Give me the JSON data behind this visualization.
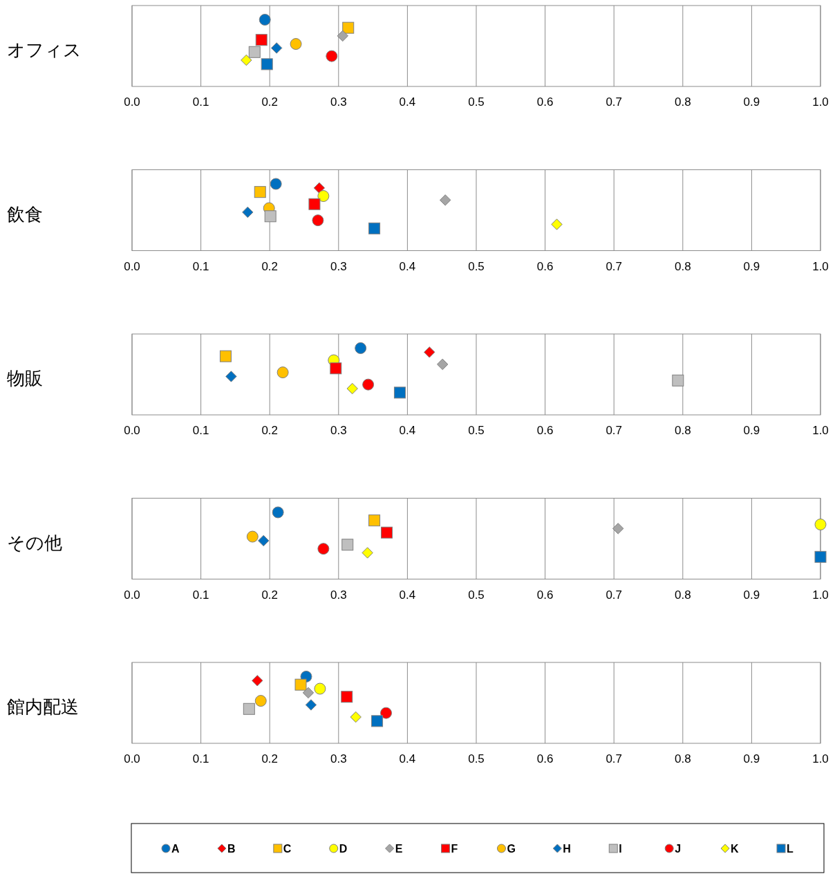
{
  "chart_data": [
    {
      "type": "scatter",
      "title": "オフィス",
      "orientation": "horizontal",
      "categories": [
        null,
        null,
        null,
        null,
        null,
        null,
        null,
        null,
        null,
        null,
        null,
        null,
        null,
        null,
        null,
        null,
        null,
        null,
        null,
        null
      ],
      "xlim": [
        0,
        1
      ],
      "xticks": [
        {
          "value": 0,
          "label": "0.0"
        },
        {
          "value": 0.1,
          "label": "0.1"
        },
        {
          "value": 0.2,
          "label": "0.2"
        },
        {
          "value": 0.3,
          "label": "0.3"
        },
        {
          "value": 0.4,
          "label": "0.4"
        },
        {
          "value": 0.5,
          "label": "0.5"
        },
        {
          "value": 0.6,
          "label": "0.6"
        },
        {
          "value": 0.7,
          "label": "0.7"
        },
        {
          "value": 0.8,
          "label": "0.8"
        },
        {
          "value": 0.9,
          "label": "0.9"
        },
        {
          "value": 1,
          "label": "1.0"
        }
      ],
      "grid": "x",
      "series": [
        {
          "color": "#0070c0",
          "marker": "circle",
          "values": [
            null,
            null,
            null,
            0.193,
            null,
            null,
            null,
            null,
            null,
            null,
            null,
            null,
            null,
            null,
            null,
            null,
            null,
            null,
            null,
            null
          ]
        },
        {
          "values": [
            null,
            null,
            null,
            null,
            null,
            null,
            null,
            null,
            null,
            null,
            null,
            null,
            null,
            null,
            null,
            null,
            null,
            null,
            null,
            null
          ]
        },
        {
          "color": "#ffc000",
          "marker": "square",
          "values": [
            null,
            null,
            null,
            null,
            null,
            0.314,
            null,
            null,
            null,
            null,
            null,
            null,
            null,
            null,
            null,
            null,
            null,
            null,
            null,
            null
          ]
        },
        {
          "values": [
            null,
            null,
            null,
            null,
            null,
            null,
            null,
            null,
            null,
            null,
            null,
            null,
            null,
            null,
            null,
            null,
            null,
            null,
            null,
            null
          ]
        },
        {
          "color": "#a5a5a5",
          "marker": "diamond",
          "values": [
            null,
            null,
            null,
            null,
            null,
            null,
            null,
            0.306,
            null,
            null,
            null,
            null,
            null,
            null,
            null,
            null,
            null,
            null,
            null,
            null
          ]
        },
        {
          "color": "#ff0000",
          "marker": "square",
          "values": [
            null,
            null,
            null,
            null,
            null,
            null,
            null,
            null,
            0.188,
            null,
            null,
            null,
            null,
            null,
            null,
            null,
            null,
            null,
            null,
            null
          ]
        },
        {
          "color": "#ffc000",
          "marker": "circle",
          "values": [
            null,
            null,
            null,
            null,
            null,
            null,
            null,
            null,
            null,
            0.238,
            null,
            null,
            null,
            null,
            null,
            null,
            null,
            null,
            null,
            null
          ]
        },
        {
          "color": "#0070c0",
          "marker": "diamond",
          "values": [
            null,
            null,
            null,
            null,
            null,
            null,
            null,
            null,
            null,
            null,
            0.21,
            null,
            null,
            null,
            null,
            null,
            null,
            null,
            null,
            null
          ]
        },
        {
          "color": "#bfbfbf",
          "marker": "square",
          "values": [
            null,
            null,
            null,
            null,
            null,
            null,
            null,
            null,
            null,
            null,
            null,
            0.178,
            null,
            null,
            null,
            null,
            null,
            null,
            null,
            null
          ]
        },
        {
          "color": "#ff0000",
          "marker": "circle",
          "values": [
            null,
            null,
            null,
            null,
            null,
            null,
            null,
            null,
            null,
            null,
            null,
            null,
            0.29,
            null,
            null,
            null,
            null,
            null,
            null,
            null
          ]
        },
        {
          "color": "#ffff00",
          "marker": "diamond",
          "values": [
            null,
            null,
            null,
            null,
            null,
            null,
            null,
            null,
            null,
            null,
            null,
            null,
            null,
            0.166,
            null,
            null,
            null,
            null,
            null,
            null
          ]
        },
        {
          "color": "#0070c0",
          "marker": "square",
          "values": [
            null,
            null,
            null,
            null,
            null,
            null,
            null,
            null,
            null,
            null,
            null,
            null,
            null,
            null,
            0.196,
            null,
            null,
            null,
            null,
            null
          ]
        }
      ]
    },
    {
      "type": "scatter",
      "title": "飲食",
      "orientation": "horizontal",
      "categories": [
        null,
        null,
        null,
        null,
        null,
        null,
        null,
        null,
        null,
        null,
        null,
        null,
        null,
        null,
        null,
        null,
        null,
        null,
        null,
        null
      ],
      "xlim": [
        0,
        1
      ],
      "xticks": [
        {
          "value": 0,
          "label": "0.0"
        },
        {
          "value": 0.1,
          "label": "0.1"
        },
        {
          "value": 0.2,
          "label": "0.2"
        },
        {
          "value": 0.3,
          "label": "0.3"
        },
        {
          "value": 0.4,
          "label": "0.4"
        },
        {
          "value": 0.5,
          "label": "0.5"
        },
        {
          "value": 0.6,
          "label": "0.6"
        },
        {
          "value": 0.7,
          "label": "0.7"
        },
        {
          "value": 0.8,
          "label": "0.8"
        },
        {
          "value": 0.9,
          "label": "0.9"
        },
        {
          "value": 1,
          "label": "1.0"
        }
      ],
      "grid": "x",
      "series": [
        {
          "color": "#0070c0",
          "marker": "circle",
          "values": [
            null,
            null,
            null,
            0.209,
            null,
            null,
            null,
            null,
            null,
            null,
            null,
            null,
            null,
            null,
            null,
            null,
            null,
            null,
            null,
            null
          ]
        },
        {
          "color": "#ff0000",
          "marker": "diamond",
          "values": [
            null,
            null,
            null,
            null,
            0.272,
            null,
            null,
            null,
            null,
            null,
            null,
            null,
            null,
            null,
            null,
            null,
            null,
            null,
            null,
            null
          ]
        },
        {
          "color": "#ffc000",
          "marker": "square",
          "values": [
            null,
            null,
            null,
            null,
            null,
            0.186,
            null,
            null,
            null,
            null,
            null,
            null,
            null,
            null,
            null,
            null,
            null,
            null,
            null,
            null
          ]
        },
        {
          "color": "#ffff00",
          "marker": "circle",
          "values": [
            null,
            null,
            null,
            null,
            null,
            null,
            0.278,
            null,
            null,
            null,
            null,
            null,
            null,
            null,
            null,
            null,
            null,
            null,
            null,
            null
          ]
        },
        {
          "color": "#a5a5a5",
          "marker": "diamond",
          "values": [
            null,
            null,
            null,
            null,
            null,
            null,
            null,
            0.455,
            null,
            null,
            null,
            null,
            null,
            null,
            null,
            null,
            null,
            null,
            null,
            null
          ]
        },
        {
          "color": "#ff0000",
          "marker": "square",
          "values": [
            null,
            null,
            null,
            null,
            null,
            null,
            null,
            null,
            0.265,
            null,
            null,
            null,
            null,
            null,
            null,
            null,
            null,
            null,
            null,
            null
          ]
        },
        {
          "color": "#ffc000",
          "marker": "circle",
          "values": [
            null,
            null,
            null,
            null,
            null,
            null,
            null,
            null,
            null,
            0.199,
            null,
            null,
            null,
            null,
            null,
            null,
            null,
            null,
            null,
            null
          ]
        },
        {
          "color": "#0070c0",
          "marker": "diamond",
          "values": [
            null,
            null,
            null,
            null,
            null,
            null,
            null,
            null,
            null,
            null,
            0.168,
            null,
            null,
            null,
            null,
            null,
            null,
            null,
            null,
            null
          ]
        },
        {
          "color": "#bfbfbf",
          "marker": "square",
          "values": [
            null,
            null,
            null,
            null,
            null,
            null,
            null,
            null,
            null,
            null,
            null,
            0.201,
            null,
            null,
            null,
            null,
            null,
            null,
            null,
            null
          ]
        },
        {
          "color": "#ff0000",
          "marker": "circle",
          "values": [
            null,
            null,
            null,
            null,
            null,
            null,
            null,
            null,
            null,
            null,
            null,
            null,
            0.27,
            null,
            null,
            null,
            null,
            null,
            null,
            null
          ]
        },
        {
          "color": "#ffff00",
          "marker": "diamond",
          "values": [
            null,
            null,
            null,
            null,
            null,
            null,
            null,
            null,
            null,
            null,
            null,
            null,
            null,
            0.617,
            null,
            null,
            null,
            null,
            null,
            null
          ]
        },
        {
          "color": "#0070c0",
          "marker": "square",
          "values": [
            null,
            null,
            null,
            null,
            null,
            null,
            null,
            null,
            null,
            null,
            null,
            null,
            null,
            null,
            0.352,
            null,
            null,
            null,
            null,
            null
          ]
        }
      ]
    },
    {
      "type": "scatter",
      "title": "物販",
      "orientation": "horizontal",
      "categories": [
        null,
        null,
        null,
        null,
        null,
        null,
        null,
        null,
        null,
        null,
        null,
        null,
        null,
        null,
        null,
        null,
        null,
        null,
        null,
        null
      ],
      "xlim": [
        0,
        1
      ],
      "xticks": [
        {
          "value": 0,
          "label": "0.0"
        },
        {
          "value": 0.1,
          "label": "0.1"
        },
        {
          "value": 0.2,
          "label": "0.2"
        },
        {
          "value": 0.3,
          "label": "0.3"
        },
        {
          "value": 0.4,
          "label": "0.4"
        },
        {
          "value": 0.5,
          "label": "0.5"
        },
        {
          "value": 0.6,
          "label": "0.6"
        },
        {
          "value": 0.7,
          "label": "0.7"
        },
        {
          "value": 0.8,
          "label": "0.8"
        },
        {
          "value": 0.9,
          "label": "0.9"
        },
        {
          "value": 1,
          "label": "1.0"
        }
      ],
      "grid": "x",
      "series": [
        {
          "color": "#0070c0",
          "marker": "circle",
          "values": [
            null,
            null,
            null,
            0.332,
            null,
            null,
            null,
            null,
            null,
            null,
            null,
            null,
            null,
            null,
            null,
            null,
            null,
            null,
            null,
            null
          ]
        },
        {
          "color": "#ff0000",
          "marker": "diamond",
          "values": [
            null,
            null,
            null,
            null,
            0.432,
            null,
            null,
            null,
            null,
            null,
            null,
            null,
            null,
            null,
            null,
            null,
            null,
            null,
            null,
            null
          ]
        },
        {
          "color": "#ffc000",
          "marker": "square",
          "values": [
            null,
            null,
            null,
            null,
            null,
            0.136,
            null,
            null,
            null,
            null,
            null,
            null,
            null,
            null,
            null,
            null,
            null,
            null,
            null,
            null
          ]
        },
        {
          "color": "#ffff00",
          "marker": "circle",
          "values": [
            null,
            null,
            null,
            null,
            null,
            null,
            0.293,
            null,
            null,
            null,
            null,
            null,
            null,
            null,
            null,
            null,
            null,
            null,
            null,
            null
          ]
        },
        {
          "color": "#a5a5a5",
          "marker": "diamond",
          "values": [
            null,
            null,
            null,
            null,
            null,
            null,
            null,
            0.451,
            null,
            null,
            null,
            null,
            null,
            null,
            null,
            null,
            null,
            null,
            null,
            null
          ]
        },
        {
          "color": "#ff0000",
          "marker": "square",
          "values": [
            null,
            null,
            null,
            null,
            null,
            null,
            null,
            null,
            0.296,
            null,
            null,
            null,
            null,
            null,
            null,
            null,
            null,
            null,
            null,
            null
          ]
        },
        {
          "color": "#ffc000",
          "marker": "circle",
          "values": [
            null,
            null,
            null,
            null,
            null,
            null,
            null,
            null,
            null,
            0.219,
            null,
            null,
            null,
            null,
            null,
            null,
            null,
            null,
            null,
            null
          ]
        },
        {
          "color": "#0070c0",
          "marker": "diamond",
          "values": [
            null,
            null,
            null,
            null,
            null,
            null,
            null,
            null,
            null,
            null,
            0.144,
            null,
            null,
            null,
            null,
            null,
            null,
            null,
            null,
            null
          ]
        },
        {
          "color": "#bfbfbf",
          "marker": "square",
          "values": [
            null,
            null,
            null,
            null,
            null,
            null,
            null,
            null,
            null,
            null,
            null,
            0.793,
            null,
            null,
            null,
            null,
            null,
            null,
            null,
            null
          ]
        },
        {
          "color": "#ff0000",
          "marker": "circle",
          "values": [
            null,
            null,
            null,
            null,
            null,
            null,
            null,
            null,
            null,
            null,
            null,
            null,
            0.343,
            null,
            null,
            null,
            null,
            null,
            null,
            null
          ]
        },
        {
          "color": "#ffff00",
          "marker": "diamond",
          "values": [
            null,
            null,
            null,
            null,
            null,
            null,
            null,
            null,
            null,
            null,
            null,
            null,
            null,
            0.32,
            null,
            null,
            null,
            null,
            null,
            null
          ]
        },
        {
          "color": "#0070c0",
          "marker": "square",
          "values": [
            null,
            null,
            null,
            null,
            null,
            null,
            null,
            null,
            null,
            null,
            null,
            null,
            null,
            null,
            0.389,
            null,
            null,
            null,
            null,
            null
          ]
        }
      ]
    },
    {
      "type": "scatter",
      "title": "その他",
      "orientation": "horizontal",
      "categories": [
        null,
        null,
        null,
        null,
        null,
        null,
        null,
        null,
        null,
        null,
        null,
        null,
        null,
        null,
        null,
        null,
        null,
        null,
        null,
        null
      ],
      "xlim": [
        0,
        1
      ],
      "xticks": [
        {
          "value": 0,
          "label": "0.0"
        },
        {
          "value": 0.1,
          "label": "0.1"
        },
        {
          "value": 0.2,
          "label": "0.2"
        },
        {
          "value": 0.3,
          "label": "0.3"
        },
        {
          "value": 0.4,
          "label": "0.4"
        },
        {
          "value": 0.5,
          "label": "0.5"
        },
        {
          "value": 0.6,
          "label": "0.6"
        },
        {
          "value": 0.7,
          "label": "0.7"
        },
        {
          "value": 0.8,
          "label": "0.8"
        },
        {
          "value": 0.9,
          "label": "0.9"
        },
        {
          "value": 1,
          "label": "1.0"
        }
      ],
      "grid": "x",
      "series": [
        {
          "color": "#0070c0",
          "marker": "circle",
          "values": [
            null,
            null,
            null,
            0.212,
            null,
            null,
            null,
            null,
            null,
            null,
            null,
            null,
            null,
            null,
            null,
            null,
            null,
            null,
            null,
            null
          ]
        },
        {
          "values": [
            null,
            null,
            null,
            null,
            null,
            null,
            null,
            null,
            null,
            null,
            null,
            null,
            null,
            null,
            null,
            null,
            null,
            null,
            null,
            null
          ]
        },
        {
          "color": "#ffc000",
          "marker": "square",
          "values": [
            null,
            null,
            null,
            null,
            null,
            0.352,
            null,
            null,
            null,
            null,
            null,
            null,
            null,
            null,
            null,
            null,
            null,
            null,
            null,
            null
          ]
        },
        {
          "color": "#ffff00",
          "marker": "circle",
          "values": [
            null,
            null,
            null,
            null,
            null,
            null,
            1,
            null,
            null,
            null,
            null,
            null,
            null,
            null,
            null,
            null,
            null,
            null,
            null,
            null
          ]
        },
        {
          "color": "#a5a5a5",
          "marker": "diamond",
          "values": [
            null,
            null,
            null,
            null,
            null,
            null,
            null,
            0.706,
            null,
            null,
            null,
            null,
            null,
            null,
            null,
            null,
            null,
            null,
            null,
            null
          ]
        },
        {
          "color": "#ff0000",
          "marker": "square",
          "values": [
            null,
            null,
            null,
            null,
            null,
            null,
            null,
            null,
            0.37,
            null,
            null,
            null,
            null,
            null,
            null,
            null,
            null,
            null,
            null,
            null
          ]
        },
        {
          "color": "#ffc000",
          "marker": "circle",
          "values": [
            null,
            null,
            null,
            null,
            null,
            null,
            null,
            null,
            null,
            0.175,
            null,
            null,
            null,
            null,
            null,
            null,
            null,
            null,
            null,
            null
          ]
        },
        {
          "color": "#0070c0",
          "marker": "diamond",
          "values": [
            null,
            null,
            null,
            null,
            null,
            null,
            null,
            null,
            null,
            null,
            0.191,
            null,
            null,
            null,
            null,
            null,
            null,
            null,
            null,
            null
          ]
        },
        {
          "color": "#bfbfbf",
          "marker": "square",
          "values": [
            null,
            null,
            null,
            null,
            null,
            null,
            null,
            null,
            null,
            null,
            null,
            0.313,
            null,
            null,
            null,
            null,
            null,
            null,
            null,
            null
          ]
        },
        {
          "color": "#ff0000",
          "marker": "circle",
          "values": [
            null,
            null,
            null,
            null,
            null,
            null,
            null,
            null,
            null,
            null,
            null,
            null,
            0.278,
            null,
            null,
            null,
            null,
            null,
            null,
            null
          ]
        },
        {
          "color": "#ffff00",
          "marker": "diamond",
          "values": [
            null,
            null,
            null,
            null,
            null,
            null,
            null,
            null,
            null,
            null,
            null,
            null,
            null,
            0.342,
            null,
            null,
            null,
            null,
            null,
            null
          ]
        },
        {
          "color": "#0070c0",
          "marker": "square",
          "values": [
            null,
            null,
            null,
            null,
            null,
            null,
            null,
            null,
            null,
            null,
            null,
            null,
            null,
            null,
            1,
            null,
            null,
            null,
            null,
            null
          ]
        }
      ]
    },
    {
      "type": "scatter",
      "title": "館内配送",
      "orientation": "horizontal",
      "categories": [
        null,
        null,
        null,
        null,
        null,
        null,
        null,
        null,
        null,
        null,
        null,
        null,
        null,
        null,
        null,
        null,
        null,
        null,
        null,
        null
      ],
      "xlim": [
        0,
        1
      ],
      "xticks": [
        {
          "value": 0,
          "label": "0.0"
        },
        {
          "value": 0.1,
          "label": "0.1"
        },
        {
          "value": 0.2,
          "label": "0.2"
        },
        {
          "value": 0.3,
          "label": "0.3"
        },
        {
          "value": 0.4,
          "label": "0.4"
        },
        {
          "value": 0.5,
          "label": "0.5"
        },
        {
          "value": 0.6,
          "label": "0.6"
        },
        {
          "value": 0.7,
          "label": "0.7"
        },
        {
          "value": 0.8,
          "label": "0.8"
        },
        {
          "value": 0.9,
          "label": "0.9"
        },
        {
          "value": 1,
          "label": "1.0"
        }
      ],
      "grid": "x",
      "legend": "bottom",
      "series": [
        {
          "name": "A",
          "color": "#0070c0",
          "marker": "circle",
          "values": [
            null,
            null,
            null,
            0.253,
            null,
            null,
            null,
            null,
            null,
            null,
            null,
            null,
            null,
            null,
            null,
            null,
            null,
            null,
            null,
            null
          ]
        },
        {
          "name": "B",
          "color": "#ff0000",
          "marker": "diamond",
          "values": [
            null,
            null,
            null,
            null,
            0.182,
            null,
            null,
            null,
            null,
            null,
            null,
            null,
            null,
            null,
            null,
            null,
            null,
            null,
            null,
            null
          ]
        },
        {
          "name": "C",
          "color": "#ffc000",
          "marker": "square",
          "values": [
            null,
            null,
            null,
            null,
            null,
            0.245,
            null,
            null,
            null,
            null,
            null,
            null,
            null,
            null,
            null,
            null,
            null,
            null,
            null,
            null
          ]
        },
        {
          "name": "D",
          "color": "#ffff00",
          "marker": "circle",
          "values": [
            null,
            null,
            null,
            null,
            null,
            null,
            0.273,
            null,
            null,
            null,
            null,
            null,
            null,
            null,
            null,
            null,
            null,
            null,
            null,
            null
          ]
        },
        {
          "name": "E",
          "color": "#a5a5a5",
          "marker": "diamond",
          "values": [
            null,
            null,
            null,
            null,
            null,
            null,
            null,
            0.256,
            null,
            null,
            null,
            null,
            null,
            null,
            null,
            null,
            null,
            null,
            null,
            null
          ]
        },
        {
          "name": "F",
          "color": "#ff0000",
          "marker": "square",
          "values": [
            null,
            null,
            null,
            null,
            null,
            null,
            null,
            null,
            0.312,
            null,
            null,
            null,
            null,
            null,
            null,
            null,
            null,
            null,
            null,
            null
          ]
        },
        {
          "name": "G",
          "color": "#ffc000",
          "marker": "circle",
          "values": [
            null,
            null,
            null,
            null,
            null,
            null,
            null,
            null,
            null,
            0.187,
            null,
            null,
            null,
            null,
            null,
            null,
            null,
            null,
            null,
            null
          ]
        },
        {
          "name": "H",
          "color": "#0070c0",
          "marker": "diamond",
          "values": [
            null,
            null,
            null,
            null,
            null,
            null,
            null,
            null,
            null,
            null,
            0.26,
            null,
            null,
            null,
            null,
            null,
            null,
            null,
            null,
            null
          ]
        },
        {
          "name": "I",
          "color": "#bfbfbf",
          "marker": "square",
          "values": [
            null,
            null,
            null,
            null,
            null,
            null,
            null,
            null,
            null,
            null,
            null,
            0.17,
            null,
            null,
            null,
            null,
            null,
            null,
            null,
            null
          ]
        },
        {
          "name": "J",
          "color": "#ff0000",
          "marker": "circle",
          "values": [
            null,
            null,
            null,
            null,
            null,
            null,
            null,
            null,
            null,
            null,
            null,
            null,
            0.369,
            null,
            null,
            null,
            null,
            null,
            null,
            null
          ]
        },
        {
          "name": "K",
          "color": "#ffff00",
          "marker": "diamond",
          "values": [
            null,
            null,
            null,
            null,
            null,
            null,
            null,
            null,
            null,
            null,
            null,
            null,
            null,
            0.325,
            null,
            null,
            null,
            null,
            null,
            null
          ]
        },
        {
          "name": "L",
          "color": "#0070c0",
          "marker": "square",
          "values": [
            null,
            null,
            null,
            null,
            null,
            null,
            null,
            null,
            null,
            null,
            null,
            null,
            null,
            null,
            0.356,
            null,
            null,
            null,
            null,
            null
          ]
        }
      ]
    }
  ]
}
